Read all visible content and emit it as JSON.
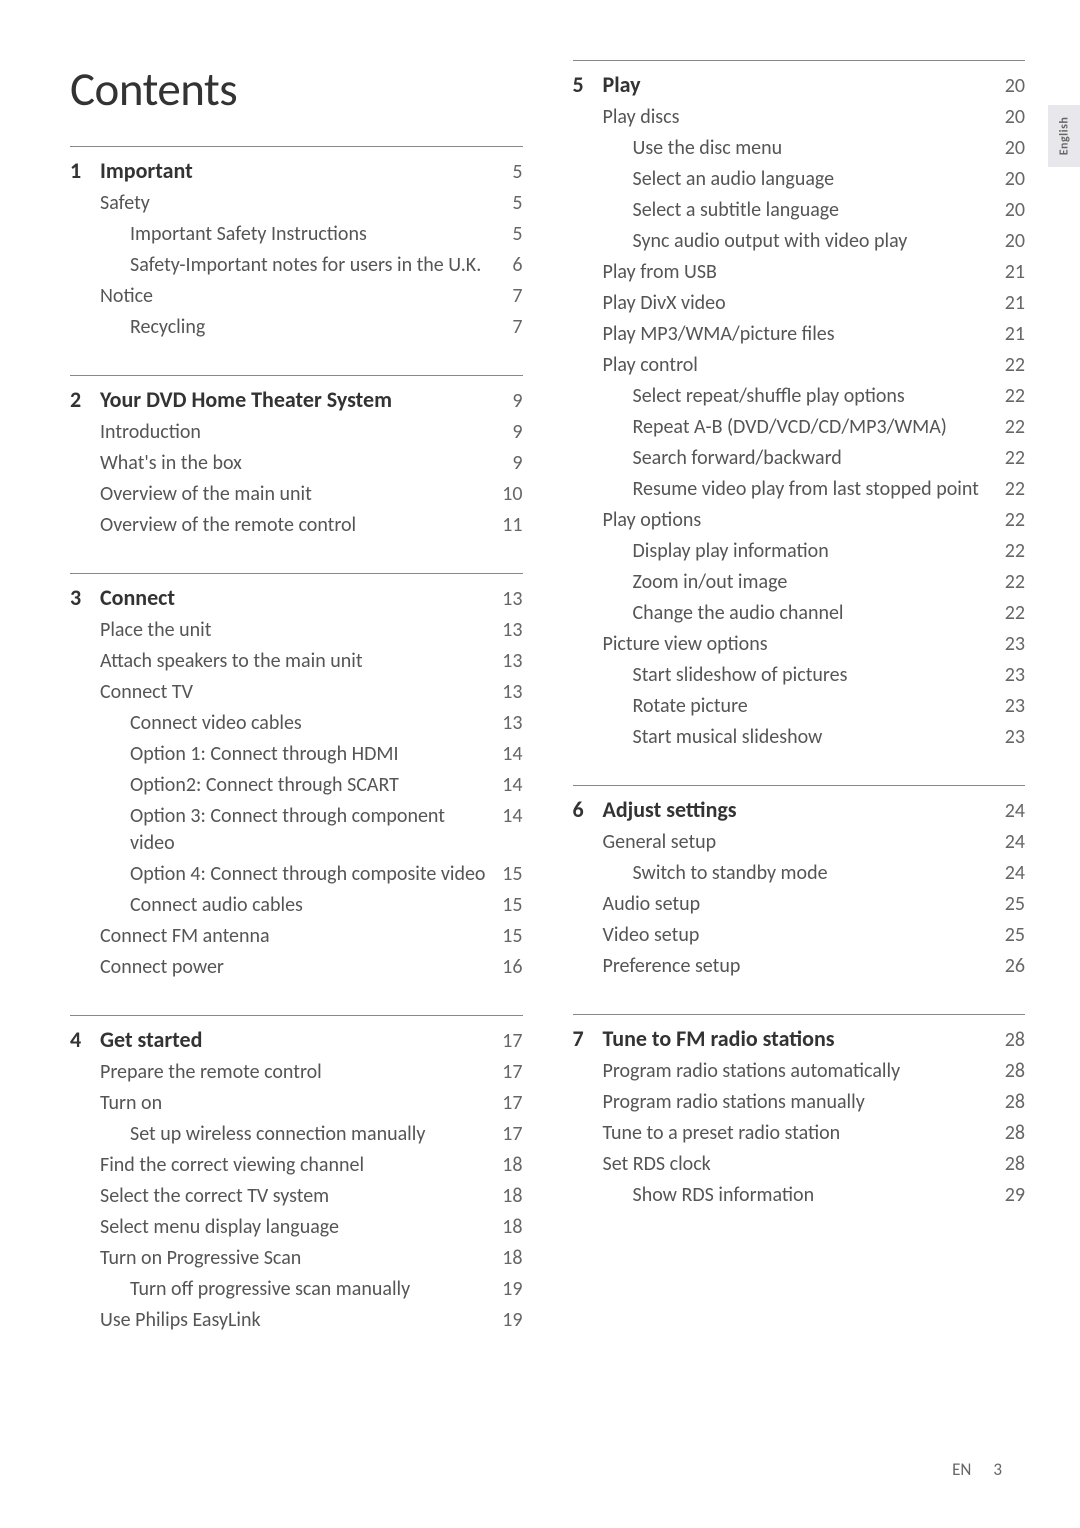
{
  "title": "Contents",
  "side_tab": "English",
  "footer": {
    "lang": "EN",
    "page": "3"
  },
  "left_sections": [
    {
      "num": "1",
      "title": "Important",
      "page": "5",
      "items": [
        {
          "text": "Safety",
          "page": "5",
          "indent": 0
        },
        {
          "text": "Important Safety Instructions",
          "page": "5",
          "indent": 1
        },
        {
          "text": "Safety-Important notes for users in the U.K.",
          "page": "6",
          "indent": 1
        },
        {
          "text": "Notice",
          "page": "7",
          "indent": 0
        },
        {
          "text": "Recycling",
          "page": "7",
          "indent": 1
        }
      ]
    },
    {
      "num": "2",
      "title": "Your DVD Home Theater System",
      "page": "9",
      "items": [
        {
          "text": "Introduction",
          "page": "9",
          "indent": 0
        },
        {
          "text": "What's in the box",
          "page": "9",
          "indent": 0
        },
        {
          "text": "Overview of the main unit",
          "page": "10",
          "indent": 0
        },
        {
          "text": "Overview of the remote control",
          "page": "11",
          "indent": 0
        }
      ]
    },
    {
      "num": "3",
      "title": "Connect",
      "page": "13",
      "items": [
        {
          "text": "Place the unit",
          "page": "13",
          "indent": 0
        },
        {
          "text": "Attach speakers to the main unit",
          "page": "13",
          "indent": 0
        },
        {
          "text": "Connect TV",
          "page": "13",
          "indent": 0
        },
        {
          "text": "Connect video cables",
          "page": "13",
          "indent": 1
        },
        {
          "text": "Option 1: Connect through HDMI",
          "page": "14",
          "indent": 1
        },
        {
          "text": "Option2: Connect through SCART",
          "page": "14",
          "indent": 1
        },
        {
          "text": "Option 3: Connect through component video",
          "page": "14",
          "indent": 1
        },
        {
          "text": "Option 4: Connect through composite video",
          "page": "15",
          "indent": 1
        },
        {
          "text": "Connect audio cables",
          "page": "15",
          "indent": 1
        },
        {
          "text": "Connect FM antenna",
          "page": "15",
          "indent": 0
        },
        {
          "text": "Connect power",
          "page": "16",
          "indent": 0
        }
      ]
    },
    {
      "num": "4",
      "title": "Get started",
      "page": "17",
      "items": [
        {
          "text": "Prepare the remote control",
          "page": "17",
          "indent": 0
        },
        {
          "text": "Turn on",
          "page": "17",
          "indent": 0
        },
        {
          "text": "Set up wireless connection manually",
          "page": "17",
          "indent": 1
        },
        {
          "text": "Find the correct viewing channel",
          "page": "18",
          "indent": 0
        },
        {
          "text": "Select the correct TV system",
          "page": "18",
          "indent": 0
        },
        {
          "text": "Select menu display language",
          "page": "18",
          "indent": 0
        },
        {
          "text": "Turn on Progressive Scan",
          "page": "18",
          "indent": 0
        },
        {
          "text": "Turn off progressive scan manually",
          "page": "19",
          "indent": 1
        },
        {
          "text": "Use Philips EasyLink",
          "page": "19",
          "indent": 0
        }
      ]
    }
  ],
  "right_sections": [
    {
      "num": "5",
      "title": "Play",
      "page": "20",
      "items": [
        {
          "text": "Play discs",
          "page": "20",
          "indent": 0
        },
        {
          "text": "Use the disc menu",
          "page": "20",
          "indent": 1
        },
        {
          "text": "Select an audio language",
          "page": "20",
          "indent": 1
        },
        {
          "text": "Select a subtitle language",
          "page": "20",
          "indent": 1
        },
        {
          "text": "Sync audio output with video play",
          "page": "20",
          "indent": 1
        },
        {
          "text": "Play from USB",
          "page": "21",
          "indent": 0
        },
        {
          "text": "Play DivX video",
          "page": "21",
          "indent": 0
        },
        {
          "text": "Play MP3/WMA/picture files",
          "page": "21",
          "indent": 0
        },
        {
          "text": "Play control",
          "page": "22",
          "indent": 0
        },
        {
          "text": "Select repeat/shuffle play options",
          "page": "22",
          "indent": 1
        },
        {
          "text": "Repeat A-B (DVD/VCD/CD/MP3/WMA)",
          "page": "22",
          "indent": 1
        },
        {
          "text": "Search forward/backward",
          "page": "22",
          "indent": 1
        },
        {
          "text": "Resume video play from last stopped point",
          "page": "22",
          "indent": 1
        },
        {
          "text": "Play options",
          "page": "22",
          "indent": 0
        },
        {
          "text": "Display play information",
          "page": "22",
          "indent": 1
        },
        {
          "text": "Zoom in/out image",
          "page": "22",
          "indent": 1
        },
        {
          "text": "Change the audio channel",
          "page": "22",
          "indent": 1
        },
        {
          "text": "Picture view options",
          "page": "23",
          "indent": 0
        },
        {
          "text": "Start slideshow of pictures",
          "page": "23",
          "indent": 1
        },
        {
          "text": "Rotate picture",
          "page": "23",
          "indent": 1
        },
        {
          "text": "Start musical slideshow",
          "page": "23",
          "indent": 1
        }
      ]
    },
    {
      "num": "6",
      "title": "Adjust settings",
      "page": "24",
      "items": [
        {
          "text": "General setup",
          "page": "24",
          "indent": 0
        },
        {
          "text": "Switch to standby mode",
          "page": "24",
          "indent": 1
        },
        {
          "text": "Audio setup",
          "page": "25",
          "indent": 0
        },
        {
          "text": "Video setup",
          "page": "25",
          "indent": 0
        },
        {
          "text": "Preference setup",
          "page": "26",
          "indent": 0
        }
      ]
    },
    {
      "num": "7",
      "title": "Tune to FM radio stations",
      "page": "28",
      "items": [
        {
          "text": "Program radio stations automatically",
          "page": "28",
          "indent": 0
        },
        {
          "text": "Program radio stations manually",
          "page": "28",
          "indent": 0
        },
        {
          "text": "Tune to a preset radio station",
          "page": "28",
          "indent": 0
        },
        {
          "text": "Set RDS clock",
          "page": "28",
          "indent": 0
        },
        {
          "text": "Show RDS information",
          "page": "29",
          "indent": 1
        }
      ]
    }
  ]
}
